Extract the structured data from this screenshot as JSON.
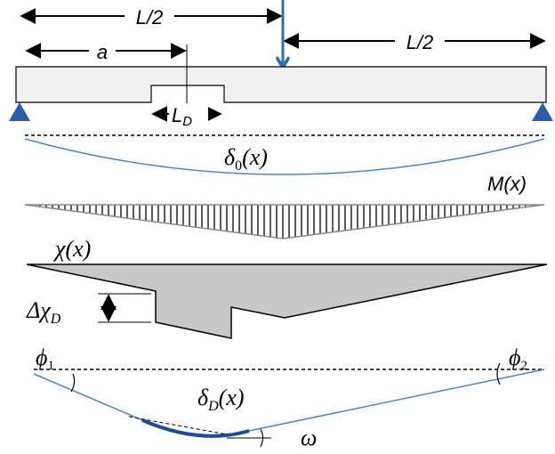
{
  "labels": {
    "half_left": "L/2",
    "half_right": "L/2",
    "a": "a",
    "ld": {
      "base": "L",
      "sub": "D"
    },
    "delta0": {
      "base": "δ",
      "sub": "0",
      "rest": "(x)"
    },
    "moment": "M(x)",
    "chi": "χ(x)",
    "dchi": {
      "base": "Δχ",
      "sub": "D"
    },
    "phi1": {
      "base": "ϕ",
      "sub": "1"
    },
    "phi2": {
      "base": "ϕ",
      "sub": "2"
    },
    "deltaD": {
      "base": "δ",
      "sub": "D",
      "rest": "(x)"
    },
    "omega": "ω"
  }
}
